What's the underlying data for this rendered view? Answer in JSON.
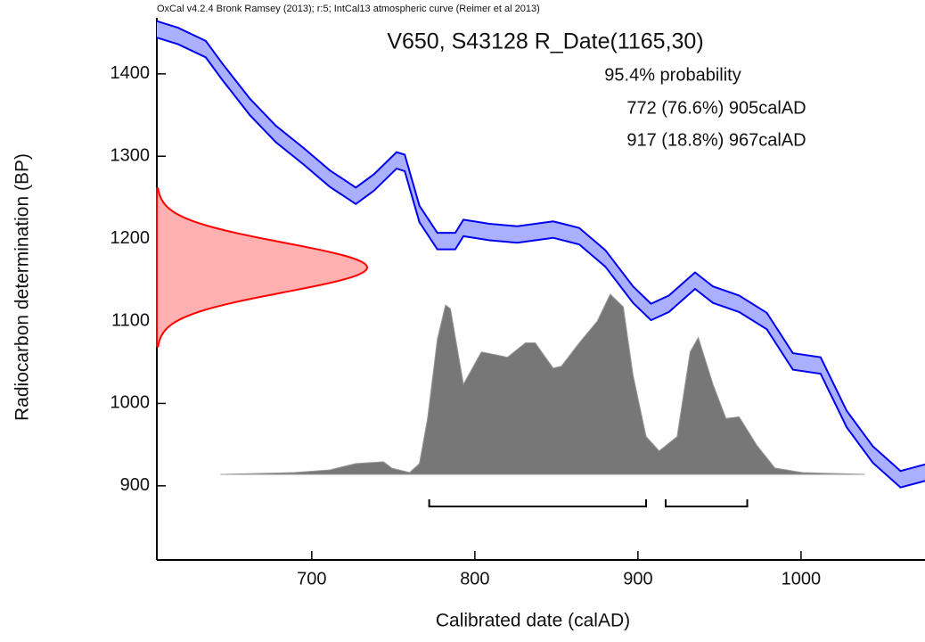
{
  "chart_data": {
    "type": "calibration",
    "header": "OxCal v4.2.4 Bronk Ramsey (2013); r:5; IntCal13 atmospheric curve (Reimer et al 2013)",
    "title": "V650, S43128 R_Date(1165,30)",
    "probability_label": "95.4% probability",
    "ranges": [
      {
        "label": "772 (76.6%) 905calAD",
        "from": 772,
        "to": 905
      },
      {
        "label": "917 (18.8%) 967calAD",
        "from": 917,
        "to": 967
      }
    ],
    "xlabel": "Calibrated date (calAD)",
    "ylabel": "Radiocarbon determination (BP)",
    "xlim": [
      605,
      1076
    ],
    "ylim": [
      810,
      1468
    ],
    "xticks": [
      700,
      800,
      900,
      1000
    ],
    "yticks": [
      900,
      1000,
      1100,
      1200,
      1300,
      1400
    ],
    "curve": {
      "color": "#0000ee",
      "fill": "#aab0ff",
      "x": [
        605,
        618,
        635,
        645,
        662,
        678,
        695,
        711,
        727,
        738,
        752,
        757,
        766,
        777,
        788,
        793,
        809,
        826,
        837,
        848,
        864,
        880,
        897,
        908,
        919,
        935,
        946,
        962,
        979,
        995,
        1012,
        1028,
        1044,
        1061,
        1076
      ],
      "upper": [
        1464,
        1456,
        1440,
        1413,
        1370,
        1337,
        1310,
        1283,
        1262,
        1278,
        1305,
        1302,
        1240,
        1207,
        1207,
        1223,
        1218,
        1215,
        1218,
        1221,
        1213,
        1186,
        1142,
        1121,
        1131,
        1159,
        1142,
        1131,
        1110,
        1061,
        1056,
        991,
        948,
        918,
        926
      ],
      "lower": [
        1444,
        1436,
        1420,
        1393,
        1350,
        1317,
        1290,
        1263,
        1242,
        1258,
        1285,
        1282,
        1220,
        1187,
        1187,
        1203,
        1198,
        1195,
        1198,
        1201,
        1193,
        1166,
        1122,
        1101,
        1111,
        1139,
        1122,
        1111,
        1090,
        1041,
        1036,
        971,
        928,
        898,
        906
      ]
    },
    "radiocarbon": {
      "mean": 1165,
      "sd": 30,
      "color": "#ff0000",
      "fill": "#ffb0b0"
    },
    "calibrated": {
      "color": "#777777",
      "x": [
        644,
        689,
        711,
        727,
        744,
        749,
        760,
        766,
        771,
        777,
        782,
        785,
        793,
        804,
        815,
        820,
        831,
        837,
        848,
        853,
        864,
        875,
        883,
        891,
        897,
        905,
        913,
        924,
        932,
        937,
        946,
        954,
        962,
        973,
        984,
        1001,
        1039
      ],
      "density": [
        0,
        1,
        2.5,
        6,
        7,
        3.5,
        1,
        6,
        31,
        75,
        94,
        92,
        50,
        68,
        66,
        65,
        73,
        73,
        59,
        60,
        73,
        85,
        100,
        93,
        55,
        21,
        13,
        21,
        68,
        76,
        50,
        31,
        32,
        16,
        3.5,
        1,
        0
      ]
    }
  }
}
